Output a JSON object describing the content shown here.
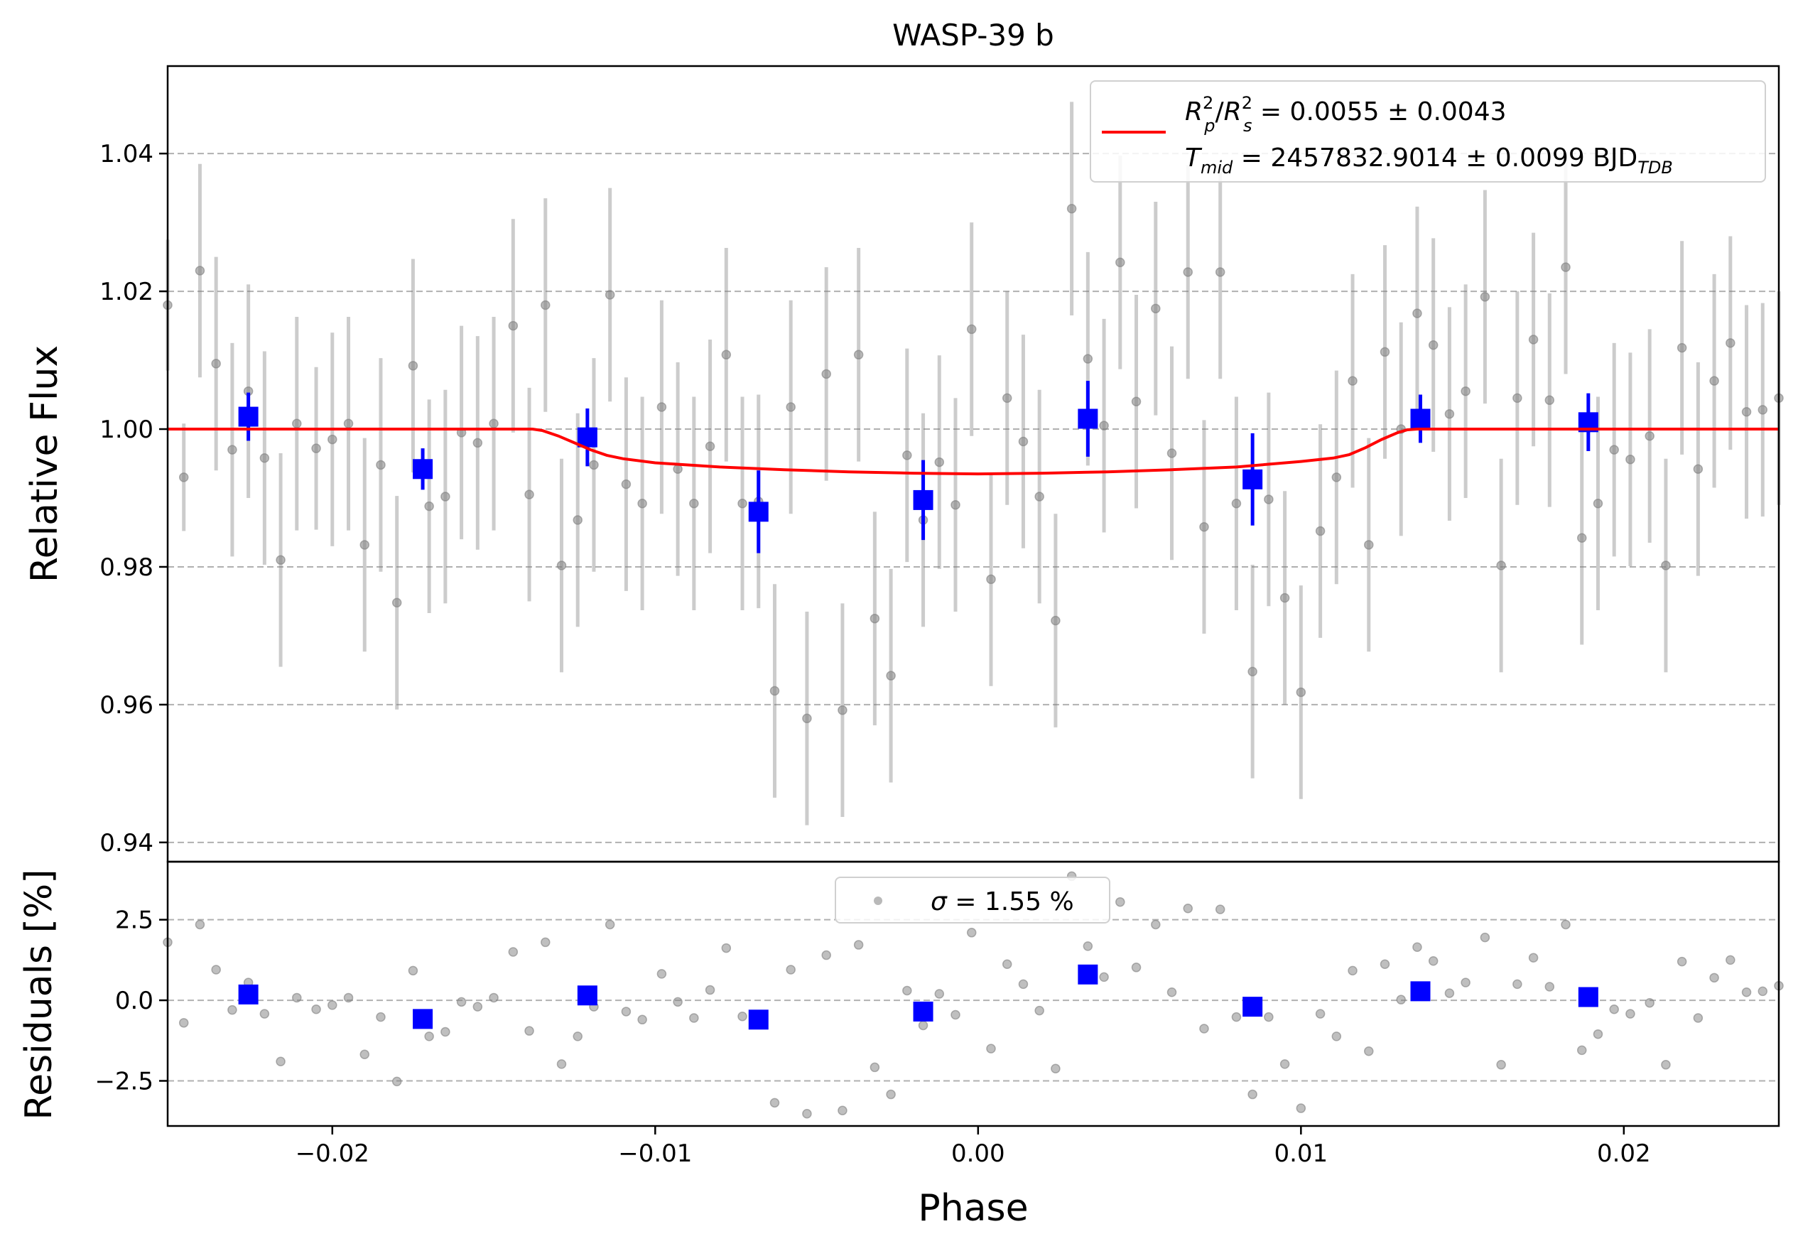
{
  "chart_data": {
    "type": "scatter",
    "title": "WASP-39 b",
    "xlabel": "Phase",
    "xlim": [
      -0.0251,
      0.0248
    ],
    "xticks": [
      -0.02,
      -0.01,
      0.0,
      0.01,
      0.02
    ],
    "xtick_labels": [
      "−0.02",
      "−0.01",
      "0.00",
      "0.01",
      "0.02"
    ],
    "grid": "horizontal dashed",
    "top_panel": {
      "ylabel": "Relative Flux",
      "ylim": [
        0.9372,
        1.0527
      ],
      "yticks": [
        0.94,
        0.96,
        0.98,
        1.0,
        1.02,
        1.04
      ],
      "ytick_labels": [
        "0.94",
        "0.96",
        "0.98",
        "1.00",
        "1.02",
        "1.04"
      ],
      "legend": {
        "placement": "top-right",
        "line1": {
          "a": "R",
          "a_sup": "2",
          "a_sub": "p",
          "slash": "/",
          "b": "R",
          "b_sup": "2",
          "b_sub": "s",
          "value": " = 0.0055 ± 0.0043"
        },
        "line2": {
          "a": "T",
          "a_sub": "mid",
          "value": " = 2457832.9014 ± 0.0099 BJD",
          "unit_sub": "TDB"
        }
      },
      "model": {
        "color": "#ff0000",
        "phase": [
          -0.0251,
          -0.0138,
          -0.0135,
          -0.013,
          -0.0125,
          -0.012,
          -0.0115,
          -0.011,
          -0.01,
          -0.008,
          -0.006,
          -0.004,
          -0.002,
          0.0,
          0.002,
          0.004,
          0.006,
          0.008,
          0.01,
          0.011,
          0.0115,
          0.012,
          0.0125,
          0.013,
          0.0133,
          0.0136,
          0.0248
        ],
        "flux": [
          1.0,
          1.0,
          0.9998,
          0.999,
          0.998,
          0.997,
          0.9962,
          0.9957,
          0.9951,
          0.9945,
          0.9941,
          0.9938,
          0.9936,
          0.9935,
          0.9936,
          0.9938,
          0.9941,
          0.9945,
          0.9953,
          0.9958,
          0.9963,
          0.9973,
          0.9985,
          0.9995,
          0.9999,
          1.0,
          1.0
        ]
      },
      "raw": {
        "color": "#808080",
        "phase": [
          -0.0251,
          -0.0246,
          -0.0241,
          -0.0236,
          -0.0231,
          -0.0226,
          -0.0221,
          -0.0216,
          -0.0211,
          -0.0205,
          -0.02,
          -0.0195,
          -0.019,
          -0.0185,
          -0.018,
          -0.0175,
          -0.017,
          -0.0165,
          -0.016,
          -0.0155,
          -0.015,
          -0.0144,
          -0.0139,
          -0.0134,
          -0.0129,
          -0.0124,
          -0.0119,
          -0.0114,
          -0.0109,
          -0.0104,
          -0.0098,
          -0.0093,
          -0.0088,
          -0.0083,
          -0.0078,
          -0.0073,
          -0.0068,
          -0.0063,
          -0.0058,
          -0.0053,
          -0.0047,
          -0.0042,
          -0.0037,
          -0.0032,
          -0.0027,
          -0.0022,
          -0.0017,
          -0.0012,
          -0.0007,
          -0.0002,
          0.0004,
          0.0009,
          0.0014,
          0.0019,
          0.0024,
          0.0029,
          0.0034,
          0.0039,
          0.0044,
          0.0049,
          0.0055,
          0.006,
          0.0065,
          0.007,
          0.0075,
          0.008,
          0.0085,
          0.009,
          0.0095,
          0.01,
          0.0106,
          0.0111,
          0.0116,
          0.0121,
          0.0126,
          0.0131,
          0.0136,
          0.0141,
          0.0146,
          0.0151,
          0.0157,
          0.0162,
          0.0167,
          0.0172,
          0.0177,
          0.0182,
          0.0187,
          0.0192,
          0.0197,
          0.0202,
          0.0208,
          0.0213,
          0.0218,
          0.0223,
          0.0228,
          0.0233,
          0.0238,
          0.0243,
          0.0248
        ],
        "flux": [
          1.018,
          0.993,
          1.023,
          1.0095,
          0.997,
          1.0055,
          0.9958,
          0.981,
          1.0008,
          0.9972,
          0.9985,
          1.0008,
          0.9832,
          0.9948,
          0.9748,
          1.0092,
          0.9888,
          0.9902,
          0.9995,
          0.998,
          1.0008,
          1.015,
          0.9905,
          1.018,
          0.9802,
          0.9868,
          0.9948,
          1.0195,
          0.992,
          0.9892,
          1.0032,
          0.9942,
          0.9892,
          0.9975,
          1.0108,
          0.9892,
          0.9895,
          0.962,
          1.0032,
          0.958,
          1.008,
          0.9592,
          1.0108,
          0.9725,
          0.9642,
          0.9962,
          0.9868,
          0.9952,
          0.989,
          1.0145,
          0.9782,
          1.0045,
          0.9982,
          0.9902,
          0.9722,
          1.032,
          1.0102,
          1.0005,
          1.0242,
          1.004,
          1.0175,
          0.9965,
          1.0228,
          0.9858,
          1.0228,
          0.9892,
          0.9648,
          0.9898,
          0.9755,
          0.9618,
          0.9852,
          0.993,
          1.007,
          0.9832,
          1.0112,
          1.0,
          1.0168,
          1.0122,
          1.0022,
          1.0055,
          1.0192,
          0.9802,
          1.0045,
          1.013,
          1.0042,
          1.0235,
          0.9842,
          0.9892,
          0.997,
          0.9956,
          0.999,
          0.9802,
          1.0118,
          0.9942,
          1.007,
          1.0125,
          1.0025,
          1.0028,
          1.0045
        ],
        "err": [
          0.0095,
          0.0078,
          0.0155,
          0.0155,
          0.0155,
          0.0155,
          0.0155,
          0.0155,
          0.0155,
          0.0118,
          0.0155,
          0.0155,
          0.0155,
          0.0155,
          0.0155,
          0.0155,
          0.0155,
          0.0155,
          0.0155,
          0.0155,
          0.0155,
          0.0155,
          0.0155,
          0.0155,
          0.0155,
          0.0155,
          0.0155,
          0.0155,
          0.0155,
          0.0155,
          0.0155,
          0.0155,
          0.0155,
          0.0155,
          0.0155,
          0.0155,
          0.0155,
          0.0155,
          0.0155,
          0.0155,
          0.0155,
          0.0155,
          0.0155,
          0.0155,
          0.0155,
          0.0155,
          0.0155,
          0.0155,
          0.0155,
          0.0155,
          0.0155,
          0.0155,
          0.0155,
          0.0155,
          0.0155,
          0.0155,
          0.0155,
          0.0155,
          0.0155,
          0.0155,
          0.0155,
          0.0155,
          0.0155,
          0.0155,
          0.0155,
          0.0155,
          0.0155,
          0.0155,
          0.0155,
          0.0155,
          0.0155,
          0.0155,
          0.0155,
          0.0155,
          0.0155,
          0.0155,
          0.0155,
          0.0155,
          0.0155,
          0.0155,
          0.0155,
          0.0155,
          0.0155,
          0.0155,
          0.0155,
          0.0155,
          0.0155,
          0.0155,
          0.0155,
          0.0155,
          0.0155,
          0.0155,
          0.0155,
          0.0155,
          0.0155,
          0.0155,
          0.0155,
          0.0155,
          0.0155
        ]
      },
      "binned": {
        "color": "#0000ff",
        "phase": [
          -0.0226,
          -0.0172,
          -0.0121,
          -0.0068,
          -0.0017,
          0.0034,
          0.0085,
          0.0137,
          0.0189
        ],
        "flux": [
          1.0018,
          0.9942,
          0.9988,
          0.988,
          0.9897,
          1.0015,
          0.9927,
          1.0015,
          1.001
        ],
        "err": [
          0.0035,
          0.003,
          0.0042,
          0.006,
          0.0058,
          0.0055,
          0.0067,
          0.0035,
          0.0042
        ]
      }
    },
    "bottom_panel": {
      "ylabel": "Residuals [%]",
      "ylim": [
        -3.9,
        4.3
      ],
      "yticks": [
        -2.5,
        0.0,
        2.5
      ],
      "ytick_labels": [
        "−2.5",
        "0.0",
        "2.5"
      ],
      "legend": {
        "placement": "top-center",
        "sigma_symbol": "σ",
        "text": " = 1.55 %"
      },
      "raw": {
        "phase": [
          -0.0251,
          -0.0246,
          -0.0241,
          -0.0236,
          -0.0231,
          -0.0226,
          -0.0221,
          -0.0216,
          -0.0211,
          -0.0205,
          -0.02,
          -0.0195,
          -0.019,
          -0.0185,
          -0.018,
          -0.0175,
          -0.017,
          -0.0165,
          -0.016,
          -0.0155,
          -0.015,
          -0.0144,
          -0.0139,
          -0.0134,
          -0.0129,
          -0.0124,
          -0.0119,
          -0.0114,
          -0.0109,
          -0.0104,
          -0.0098,
          -0.0093,
          -0.0088,
          -0.0083,
          -0.0078,
          -0.0073,
          -0.0068,
          -0.0063,
          -0.0058,
          -0.0053,
          -0.0047,
          -0.0042,
          -0.0037,
          -0.0032,
          -0.0027,
          -0.0022,
          -0.0017,
          -0.0012,
          -0.0007,
          -0.0002,
          0.0004,
          0.0009,
          0.0014,
          0.0019,
          0.0024,
          0.0029,
          0.0034,
          0.0039,
          0.0044,
          0.0049,
          0.0055,
          0.006,
          0.0065,
          0.007,
          0.0075,
          0.008,
          0.0085,
          0.009,
          0.0095,
          0.01,
          0.0106,
          0.0111,
          0.0116,
          0.0121,
          0.0126,
          0.0131,
          0.0136,
          0.0141,
          0.0146,
          0.0151,
          0.0157,
          0.0162,
          0.0167,
          0.0172,
          0.0177,
          0.0182,
          0.0187,
          0.0192,
          0.0197,
          0.0202,
          0.0208,
          0.0213,
          0.0218,
          0.0223,
          0.0228,
          0.0233,
          0.0238,
          0.0243,
          0.0248
        ],
        "residual": [
          1.8,
          -0.7,
          2.35,
          0.95,
          -0.3,
          0.55,
          -0.42,
          -1.9,
          0.08,
          -0.28,
          -0.15,
          0.08,
          -1.68,
          -0.52,
          -2.52,
          0.92,
          -1.12,
          -0.98,
          -0.05,
          -0.2,
          0.08,
          1.5,
          -0.95,
          1.8,
          -1.98,
          -1.12,
          -0.2,
          2.35,
          -0.35,
          -0.6,
          0.82,
          -0.05,
          -0.55,
          0.32,
          1.62,
          -0.5,
          -0.45,
          -3.18,
          0.95,
          -3.52,
          1.4,
          -3.42,
          1.72,
          -2.08,
          -2.92,
          0.3,
          -0.78,
          0.2,
          -0.45,
          2.1,
          -1.5,
          1.12,
          0.5,
          -0.32,
          -2.12,
          3.85,
          1.68,
          0.72,
          3.05,
          1.02,
          2.35,
          0.25,
          2.85,
          -0.88,
          2.82,
          -0.52,
          -2.92,
          -0.52,
          -1.98,
          -3.35,
          -0.42,
          -1.12,
          0.92,
          -1.58,
          1.12,
          0.02,
          1.65,
          1.22,
          0.22,
          0.55,
          1.95,
          -2.0,
          0.5,
          1.32,
          0.42,
          2.35,
          -1.55,
          -1.05,
          -0.28,
          -0.42,
          -0.08,
          -2.0,
          1.2,
          -0.55,
          0.7,
          1.25,
          0.25,
          0.28,
          0.45
        ]
      },
      "binned": {
        "phase": [
          -0.0226,
          -0.0172,
          -0.0121,
          -0.0068,
          -0.0017,
          0.0034,
          0.0085,
          0.0137,
          0.0189
        ],
        "residual": [
          0.18,
          -0.58,
          0.15,
          -0.6,
          -0.35,
          0.8,
          -0.2,
          0.28,
          0.1
        ]
      }
    }
  }
}
